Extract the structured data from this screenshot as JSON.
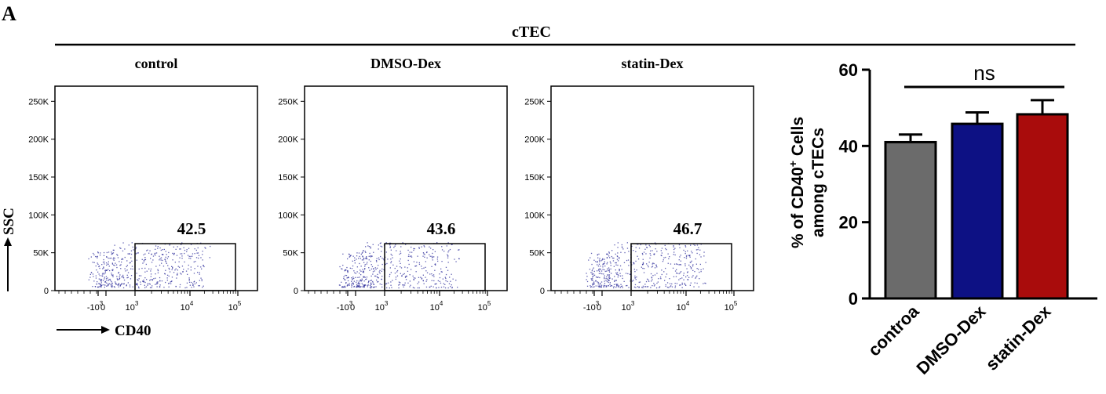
{
  "panel_label": "A",
  "group_title": "cTEC",
  "flow_axes": {
    "ylabel": "SSC",
    "xlabel": "CD40",
    "yticks": [
      "0",
      "50K",
      "100K",
      "150K",
      "200K",
      "250K"
    ],
    "xticks": [
      {
        "base": "-10",
        "exp": "3"
      },
      {
        "base": "0",
        "exp": ""
      },
      {
        "base": "10",
        "exp": "3"
      },
      {
        "base": "10",
        "exp": "4"
      },
      {
        "base": "10",
        "exp": "5"
      }
    ]
  },
  "chart_data": [
    {
      "type": "scatter",
      "title": "control",
      "gate_percent": "42.5",
      "ylim": [
        0,
        270000
      ],
      "gate_y_range": [
        0,
        62000
      ],
      "dot_color": "#2b2b9a"
    },
    {
      "type": "scatter",
      "title": "DMSO-Dex",
      "gate_percent": "43.6",
      "ylim": [
        0,
        270000
      ],
      "gate_y_range": [
        0,
        62000
      ],
      "dot_color": "#2b2b9a"
    },
    {
      "type": "scatter",
      "title": "statin-Dex",
      "gate_percent": "46.7",
      "ylim": [
        0,
        270000
      ],
      "gate_y_range": [
        0,
        62000
      ],
      "dot_color": "#2b2b9a"
    },
    {
      "type": "bar",
      "categories": [
        "controа",
        "DMSO-Dex",
        "statin-Dex"
      ],
      "values": [
        41,
        45.8,
        48.3
      ],
      "errors": [
        2,
        3,
        3.7
      ],
      "colors": [
        "#6b6b6b",
        "#0d1184",
        "#a90c0c"
      ],
      "ylabel_line1_pre": "% of CD40",
      "ylabel_line1_sup": "+",
      "ylabel_line1_post": " Cells",
      "ylabel_line2": "among cTECs",
      "ylim": [
        0,
        60
      ],
      "yticks": [
        "0",
        "20",
        "40",
        "60"
      ],
      "significance": "ns"
    }
  ]
}
